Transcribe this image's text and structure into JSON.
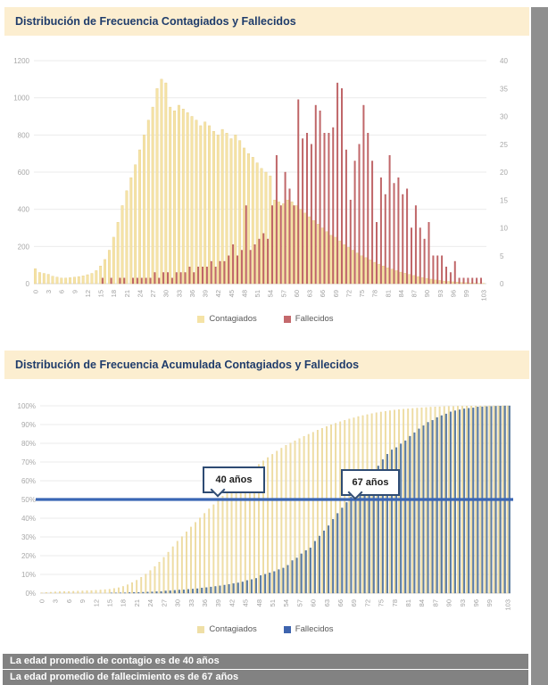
{
  "page": {
    "section1_title": "Distribución de Frecuencia Contagiados y Fallecidos",
    "section2_title": "Distribución de Frecuencia Acumulada Contagiados y Fallecidos",
    "footer_lines": [
      "La edad promedio de contagio es de 40 años",
      "La edad promedio de fallecimiento  es de 67 años"
    ]
  },
  "colors": {
    "title_bg": "#FCEED0",
    "title_text": "#1F3C6B",
    "footer_bg": "#828282",
    "gridline": "#EBEBEB",
    "axis_text": "#A8A8A8",
    "page_margin_strip": "#8f8f8f"
  },
  "chart_data": [
    {
      "type": "bar",
      "title": "Distribución de Frecuencia Contagiados y Fallecidos",
      "x_min": 0,
      "x_max": 103,
      "x_tick_labels": [
        "0",
        "3",
        "6",
        "9",
        "12",
        "15",
        "18",
        "21",
        "24",
        "27",
        "30",
        "33",
        "36",
        "39",
        "42",
        "45",
        "48",
        "51",
        "54",
        "57",
        "60",
        "63",
        "66",
        "69",
        "72",
        "75",
        "78",
        "81",
        "84",
        "87",
        "90",
        "93",
        "96",
        "99",
        "103"
      ],
      "left_axis": {
        "min": 0,
        "max": 1200,
        "step": 200
      },
      "right_axis": {
        "min": 0,
        "max": 40,
        "step": 5
      },
      "legend_position": "bottom",
      "grid": true,
      "series": [
        {
          "name": "Contagiados",
          "axis": "left",
          "color": "#F5E3A6",
          "edge": "#E6CD86",
          "values": [
            80,
            60,
            55,
            50,
            40,
            35,
            30,
            30,
            32,
            35,
            38,
            42,
            48,
            55,
            70,
            95,
            130,
            180,
            250,
            330,
            420,
            500,
            570,
            640,
            720,
            800,
            880,
            950,
            1050,
            1100,
            1080,
            950,
            930,
            960,
            940,
            920,
            900,
            880,
            850,
            870,
            850,
            820,
            800,
            830,
            810,
            780,
            800,
            770,
            730,
            700,
            680,
            650,
            620,
            600,
            580,
            450,
            440,
            430,
            450,
            440,
            420,
            400,
            380,
            360,
            340,
            320,
            300,
            280,
            260,
            250,
            230,
            210,
            195,
            180,
            165,
            150,
            140,
            128,
            115,
            105,
            95,
            85,
            78,
            70,
            62,
            56,
            50,
            44,
            38,
            33,
            28,
            24,
            20,
            17,
            14,
            12,
            10,
            8,
            6,
            5,
            4,
            3,
            2,
            2
          ]
        },
        {
          "name": "Fallecidos",
          "axis": "right",
          "color": "#C4696C",
          "edge": "#B25053",
          "values": [
            0,
            0,
            0,
            0,
            0,
            0,
            0,
            0,
            0,
            0,
            0,
            0,
            0,
            0,
            0,
            1,
            0,
            1,
            0,
            1,
            1,
            0,
            1,
            1,
            1,
            1,
            1,
            2,
            1,
            2,
            2,
            1,
            2,
            2,
            2,
            3,
            2,
            3,
            3,
            3,
            4,
            3,
            4,
            4,
            5,
            7,
            5,
            6,
            14,
            6,
            7,
            8,
            9,
            8,
            14,
            23,
            14,
            20,
            17,
            14,
            33,
            26,
            27,
            25,
            32,
            31,
            27,
            27,
            28,
            36,
            35,
            24,
            15,
            22,
            25,
            32,
            27,
            22,
            11,
            19,
            16,
            23,
            18,
            19,
            16,
            17,
            10,
            14,
            10,
            8,
            11,
            5,
            5,
            5,
            3,
            2,
            4,
            1,
            1,
            1,
            1,
            1,
            1,
            0
          ]
        }
      ]
    },
    {
      "type": "bar",
      "title": "Distribución de Frecuencia Acumulada Contagiados y Fallecidos",
      "x_min": 0,
      "x_max": 103,
      "x_tick_labels": [
        "0",
        "3",
        "6",
        "9",
        "12",
        "15",
        "18",
        "21",
        "24",
        "27",
        "30",
        "33",
        "36",
        "39",
        "42",
        "45",
        "48",
        "51",
        "54",
        "57",
        "60",
        "63",
        "66",
        "69",
        "72",
        "75",
        "78",
        "81",
        "84",
        "87",
        "90",
        "93",
        "96",
        "99",
        "103"
      ],
      "y_axis": {
        "min": 0,
        "max": 100,
        "step": 10,
        "format": "percent"
      },
      "reference_line": {
        "value": 50,
        "color": "#3A66B5"
      },
      "annotations": [
        {
          "text": "40 años",
          "age": 40,
          "meaning": "edad donde Contagiados acumulado cruza 50%"
        },
        {
          "text": "67 años",
          "age": 67,
          "meaning": "edad donde Fallecidos acumulado cruza 50%"
        }
      ],
      "legend_position": "bottom",
      "grid": true,
      "series": [
        {
          "name": "Contagiados",
          "color": "#EFDFA6",
          "edge": "#E6CD86",
          "values": [
            0.2,
            0.4,
            0.5,
            0.7,
            0.8,
            0.9,
            0.9,
            1.0,
            1.1,
            1.2,
            1.3,
            1.4,
            1.5,
            1.7,
            1.9,
            2.1,
            2.5,
            2.9,
            3.6,
            4.5,
            5.6,
            6.9,
            8.5,
            10.2,
            12.1,
            14.2,
            16.6,
            19.1,
            21.9,
            24.8,
            27.7,
            30.2,
            32.7,
            35.3,
            37.8,
            40.2,
            42.6,
            45.0,
            47.2,
            49.6,
            51.8,
            54.0,
            56.1,
            58.4,
            60.5,
            62.6,
            64.7,
            66.8,
            68.7,
            70.6,
            72.4,
            74.1,
            75.8,
            77.4,
            78.9,
            80.1,
            81.3,
            82.5,
            83.7,
            84.8,
            85.9,
            87.0,
            88.0,
            89.0,
            89.9,
            90.7,
            91.5,
            92.3,
            93.0,
            93.6,
            94.3,
            94.8,
            95.3,
            95.8,
            96.3,
            96.7,
            97.0,
            97.4,
            97.7,
            98.0,
            98.2,
            98.4,
            98.6,
            98.8,
            99.0,
            99.1,
            99.3,
            99.4,
            99.5,
            99.6,
            99.7,
            99.7,
            99.8,
            99.8,
            99.9,
            99.9,
            99.9,
            99.9,
            100,
            100,
            100,
            100,
            100,
            100
          ]
        },
        {
          "name": "Fallecidos",
          "color": "#5B7CA3",
          "edge": "#4A6A91",
          "legend_color": "#3E64AE",
          "values": [
            0,
            0,
            0,
            0,
            0,
            0,
            0,
            0,
            0,
            0,
            0,
            0,
            0,
            0,
            0,
            0.1,
            0.1,
            0.2,
            0.2,
            0.3,
            0.4,
            0.4,
            0.5,
            0.6,
            0.7,
            0.8,
            0.9,
            1.2,
            1.3,
            1.5,
            1.7,
            1.8,
            2.0,
            2.2,
            2.4,
            2.8,
            3.0,
            3.3,
            3.6,
            3.9,
            4.3,
            4.7,
            5.1,
            5.5,
            6.0,
            6.8,
            7.3,
            7.9,
            9.4,
            10.1,
            10.8,
            11.6,
            12.6,
            13.4,
            14.9,
            17.4,
            18.8,
            21.0,
            22.8,
            24.2,
            27.7,
            30.5,
            33.3,
            36.0,
            39.4,
            42.6,
            45.5,
            48.4,
            51.3,
            55.1,
            58.8,
            61.4,
            63.0,
            65.3,
            67.9,
            71.3,
            74.2,
            76.5,
            77.7,
            79.7,
            81.4,
            83.8,
            85.7,
            87.7,
            89.4,
            91.2,
            92.3,
            93.8,
            94.8,
            95.7,
            96.8,
            97.4,
            97.9,
            98.4,
            98.7,
            98.9,
            99.4,
            99.5,
            99.6,
            99.7,
            99.8,
            99.9,
            100,
            100
          ]
        }
      ]
    }
  ]
}
